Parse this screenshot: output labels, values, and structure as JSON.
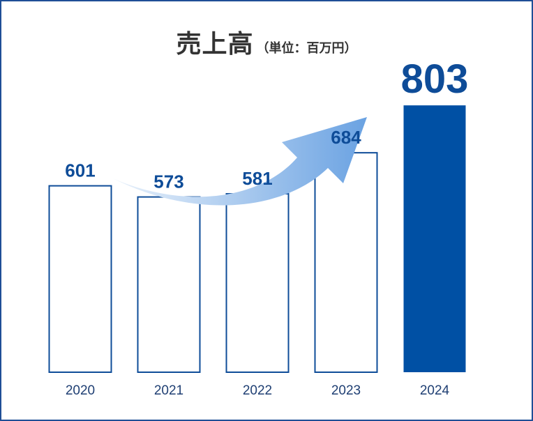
{
  "chart_data": {
    "type": "bar",
    "title": "売上高",
    "unit_label": "（単位：百万円）",
    "categories": [
      "2020",
      "2021",
      "2022",
      "2023",
      "2024"
    ],
    "values": [
      601,
      573,
      581,
      684,
      803
    ],
    "highlight_index": 4,
    "colors": {
      "bar_fill": "#ffffff",
      "bar_outline": "#0e4c98",
      "highlight_fill": "#0050a4",
      "value_label": "#0e4c98",
      "axis_label": "#1f3f73",
      "frame": "#1f4e96",
      "arrow_start": "#eaf2fb",
      "arrow_end": "#6aa2e2",
      "title": "#333333"
    },
    "decoration": "upward-trend-arrow"
  }
}
